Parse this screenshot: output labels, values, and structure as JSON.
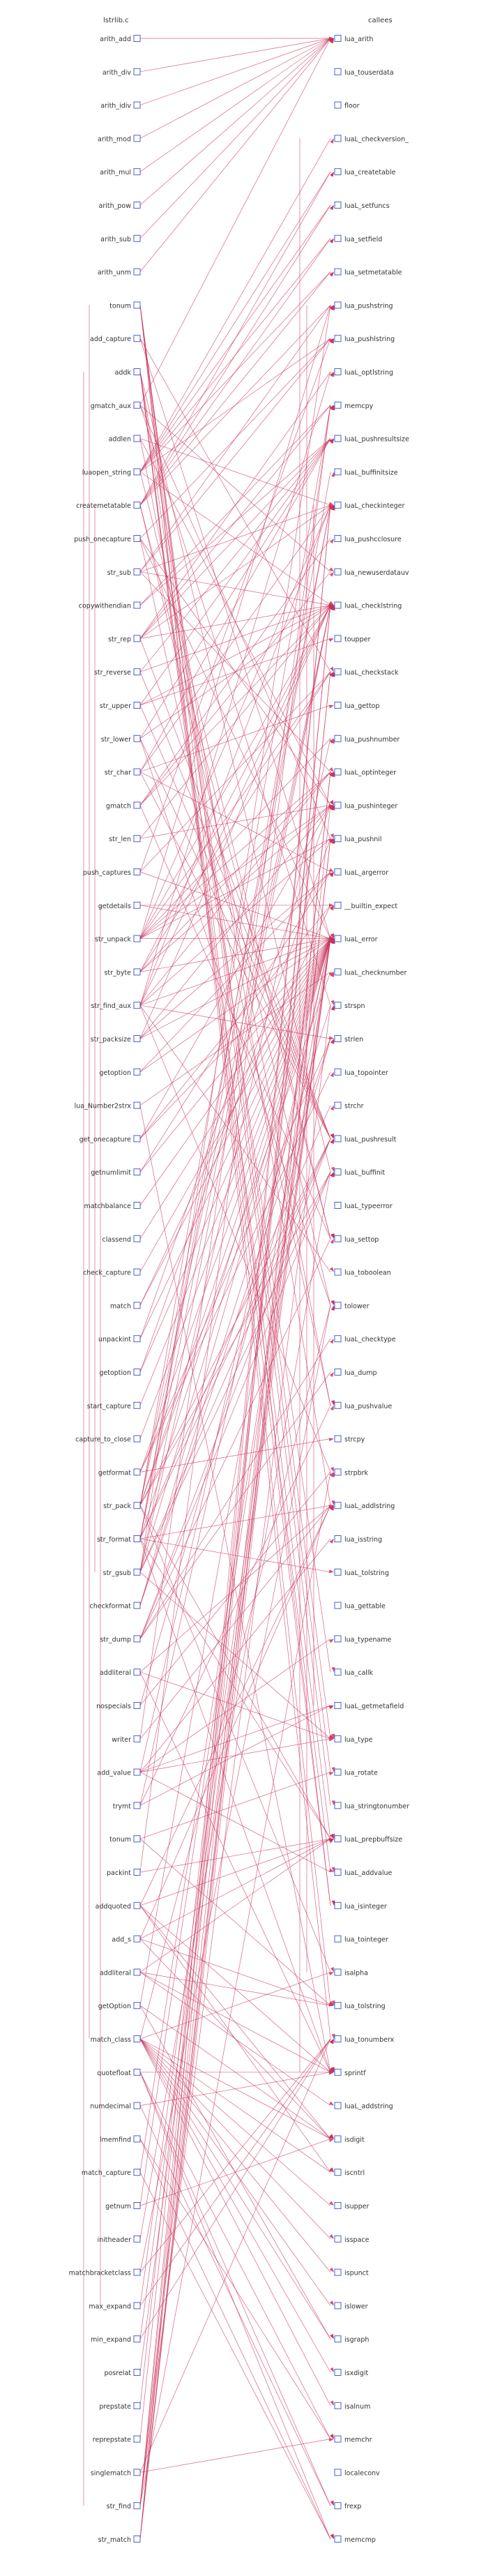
{
  "headers": {
    "left": "lstrlib.c",
    "right": "callees"
  },
  "left_nodes": [
    "arith_add",
    "arith_div",
    "arith_idiv",
    "arith_mod",
    "arith_mul",
    "arith_pow",
    "arith_sub",
    "arith_unm",
    "tonum",
    "add_capture",
    "addk",
    "gmatch_aux",
    "addlen",
    "luaopen_string",
    "createmetatable",
    "push_onecapture",
    "str_sub",
    "copywithendian",
    "str_rep",
    "str_reverse",
    "str_upper",
    "str_lower",
    "str_char",
    "gmatch",
    "str_len",
    "push_captures",
    "getdetails",
    "str_unpack",
    "str_byte",
    "str_find_aux",
    "str_packsize",
    "getoption",
    "lua_Number2strx",
    "get_onecapture",
    "getnumlimit",
    "matchbalance",
    "classend",
    "check_capture",
    "match",
    "unpackint",
    "getoption",
    "start_capture",
    "capture_to_close",
    "getformat",
    "str_pack",
    "str_format",
    "str_gsub",
    "checkformat",
    "str_dump",
    "addliteral",
    "nospecials",
    "writer",
    "add_value",
    "trymt",
    "tonum",
    "packint",
    "addquoted",
    "add_s",
    "addliteral",
    "getOption",
    "match_class",
    "quotefloat",
    "numdecimal",
    "lmemfind",
    "match_capture",
    "getnum",
    "initheader",
    "matchbracketclass",
    "max_expand",
    "min_expand",
    "posrelat",
    "prepstate",
    "reprepstate",
    "singlematch",
    "str_find",
    "str_match"
  ],
  "right_nodes": [
    "lua_arith",
    "lua_touserdata",
    "floor",
    "luaL_checkversion_",
    "lua_createtable",
    "luaL_setfuncs",
    "lua_setfield",
    "lua_setmetatable",
    "lua_pushstring",
    "lua_pushlstring",
    "luaL_optlstring",
    "memcpy",
    "luaL_pushresultsize",
    "luaL_buffinitsize",
    "luaL_checkinteger",
    "lua_pushcclosure",
    "lua_newuserdatauv",
    "luaL_checklstring",
    "toupper",
    "luaL_checkstack",
    "lua_gettop",
    "lua_pushnumber",
    "luaL_optinteger",
    "lua_pushinteger",
    "lua_pushnil",
    "luaL_argerror",
    "__builtin_expect",
    "luaL_error",
    "luaL_checknumber",
    "strspn",
    "strlen",
    "lua_topointer",
    "strchr",
    "luaL_pushresult",
    "luaL_buffinit",
    "luaL_typeerror",
    "lua_settop",
    "lua_toboolean",
    "tolower",
    "luaL_checktype",
    "lua_dump",
    "lua_pushvalue",
    "strcpy",
    "strpbrk",
    "luaL_addlstring",
    "lua_isstring",
    "luaL_tolstring",
    "lua_gettable",
    "lua_typename",
    "lua_callk",
    "luaL_getmetafield",
    "lua_type",
    "lua_rotate",
    "lua_stringtonumber",
    "luaL_prepbuffsize",
    "luaL_addvalue",
    "lua_isinteger",
    "lua_tointeger",
    "isalpha",
    "lua_tolstring",
    "lua_tonumberx",
    "sprintf",
    "luaL_addstring",
    "isdigit",
    "iscntrl",
    "isupper",
    "isspace",
    "ispunct",
    "islower",
    "isgraph",
    "isxdigit",
    "isalnum",
    "memchr",
    "localeconv",
    "frexp",
    "memcmp"
  ],
  "edges": [
    [
      0,
      0
    ],
    [
      1,
      0
    ],
    [
      2,
      0
    ],
    [
      3,
      0
    ],
    [
      4,
      0
    ],
    [
      5,
      0
    ],
    [
      6,
      0
    ],
    [
      7,
      0
    ],
    [
      8,
      59
    ],
    [
      8,
      60
    ],
    [
      8,
      53
    ],
    [
      8,
      51
    ],
    [
      8,
      52
    ],
    [
      8,
      56
    ],
    [
      9,
      27
    ],
    [
      9,
      19
    ],
    [
      10,
      56
    ],
    [
      10,
      55
    ],
    [
      10,
      49
    ],
    [
      10,
      44
    ],
    [
      10,
      54
    ],
    [
      10,
      34
    ],
    [
      11,
      24
    ],
    [
      11,
      29
    ],
    [
      11,
      0
    ],
    [
      11,
      16
    ],
    [
      12,
      14
    ],
    [
      12,
      41
    ],
    [
      12,
      23
    ],
    [
      13,
      3
    ],
    [
      13,
      4
    ],
    [
      13,
      5
    ],
    [
      13,
      6
    ],
    [
      13,
      7
    ],
    [
      13,
      9
    ],
    [
      13,
      36
    ],
    [
      13,
      17
    ],
    [
      14,
      4
    ],
    [
      14,
      8
    ],
    [
      14,
      5
    ],
    [
      14,
      38
    ],
    [
      14,
      6
    ],
    [
      14,
      7
    ],
    [
      14,
      36
    ],
    [
      15,
      23
    ],
    [
      15,
      9
    ],
    [
      15,
      27
    ],
    [
      15,
      41
    ],
    [
      16,
      17
    ],
    [
      16,
      14
    ],
    [
      16,
      22
    ],
    [
      16,
      9
    ],
    [
      16,
      8
    ],
    [
      17,
      11
    ],
    [
      17,
      12
    ],
    [
      18,
      17
    ],
    [
      18,
      14
    ],
    [
      18,
      10
    ],
    [
      18,
      12
    ],
    [
      18,
      11
    ],
    [
      18,
      33
    ],
    [
      19,
      17
    ],
    [
      19,
      12
    ],
    [
      19,
      33
    ],
    [
      20,
      17
    ],
    [
      20,
      12
    ],
    [
      20,
      18
    ],
    [
      20,
      33
    ],
    [
      21,
      17
    ],
    [
      21,
      12
    ],
    [
      21,
      38
    ],
    [
      21,
      33
    ],
    [
      22,
      20
    ],
    [
      22,
      14
    ],
    [
      22,
      12
    ],
    [
      22,
      33
    ],
    [
      22,
      25
    ],
    [
      23,
      17
    ],
    [
      23,
      36
    ],
    [
      23,
      15
    ],
    [
      23,
      16
    ],
    [
      24,
      17
    ],
    [
      24,
      23
    ],
    [
      25,
      9
    ],
    [
      25,
      19
    ],
    [
      25,
      27
    ],
    [
      26,
      27
    ],
    [
      26,
      26
    ],
    [
      27,
      17
    ],
    [
      27,
      14
    ],
    [
      27,
      22
    ],
    [
      27,
      27
    ],
    [
      27,
      19
    ],
    [
      27,
      23
    ],
    [
      27,
      21
    ],
    [
      27,
      8
    ],
    [
      27,
      24
    ],
    [
      28,
      17
    ],
    [
      28,
      22
    ],
    [
      28,
      19
    ],
    [
      28,
      23
    ],
    [
      28,
      27
    ],
    [
      29,
      17
    ],
    [
      29,
      22
    ],
    [
      29,
      14
    ],
    [
      29,
      27
    ],
    [
      29,
      24
    ],
    [
      29,
      10
    ],
    [
      29,
      30
    ],
    [
      29,
      43
    ],
    [
      29,
      37
    ],
    [
      30,
      17
    ],
    [
      30,
      27
    ],
    [
      30,
      23
    ],
    [
      30,
      25
    ],
    [
      31,
      27
    ],
    [
      31,
      25
    ],
    [
      32,
      28
    ],
    [
      32,
      61
    ],
    [
      33,
      27
    ],
    [
      33,
      23
    ],
    [
      33,
      26
    ],
    [
      34,
      27
    ],
    [
      34,
      25
    ],
    [
      35,
      27
    ],
    [
      36,
      27
    ],
    [
      37,
      27
    ],
    [
      38,
      26
    ],
    [
      38,
      27
    ],
    [
      39,
      23
    ],
    [
      39,
      27
    ],
    [
      40,
      27
    ],
    [
      40,
      24
    ],
    [
      41,
      27
    ],
    [
      42,
      27
    ],
    [
      43,
      30
    ],
    [
      43,
      27
    ],
    [
      43,
      42
    ],
    [
      43,
      31
    ],
    [
      44,
      17
    ],
    [
      44,
      54
    ],
    [
      44,
      34
    ],
    [
      44,
      58
    ],
    [
      44,
      28
    ],
    [
      44,
      14
    ],
    [
      44,
      33
    ],
    [
      44,
      27
    ],
    [
      44,
      11
    ],
    [
      45,
      17
    ],
    [
      45,
      54
    ],
    [
      45,
      33
    ],
    [
      45,
      61
    ],
    [
      45,
      46
    ],
    [
      45,
      32
    ],
    [
      45,
      44
    ],
    [
      45,
      13
    ],
    [
      45,
      27
    ],
    [
      45,
      14
    ],
    [
      46,
      17
    ],
    [
      46,
      34
    ],
    [
      46,
      33
    ],
    [
      46,
      51
    ],
    [
      46,
      27
    ],
    [
      46,
      21
    ],
    [
      46,
      8
    ],
    [
      47,
      29
    ],
    [
      47,
      27
    ],
    [
      47,
      30
    ],
    [
      48,
      39
    ],
    [
      48,
      40
    ],
    [
      48,
      34
    ],
    [
      48,
      33
    ],
    [
      48,
      36
    ],
    [
      49,
      44
    ],
    [
      49,
      51
    ],
    [
      49,
      61
    ],
    [
      50,
      43
    ],
    [
      50,
      30
    ],
    [
      51,
      44
    ],
    [
      51,
      11
    ],
    [
      52,
      51
    ],
    [
      52,
      50
    ],
    [
      52,
      48
    ],
    [
      52,
      27
    ],
    [
      52,
      55
    ],
    [
      52,
      45
    ],
    [
      53,
      50
    ],
    [
      53,
      27
    ],
    [
      53,
      41
    ],
    [
      54,
      52
    ],
    [
      54,
      59
    ],
    [
      55,
      54
    ],
    [
      55,
      11
    ],
    [
      56,
      54
    ],
    [
      56,
      63
    ],
    [
      56,
      64
    ],
    [
      56,
      61
    ],
    [
      56,
      44
    ],
    [
      57,
      54
    ],
    [
      57,
      44
    ],
    [
      57,
      59
    ],
    [
      57,
      63
    ],
    [
      58,
      59
    ],
    [
      58,
      61
    ],
    [
      58,
      54
    ],
    [
      58,
      62
    ],
    [
      59,
      27
    ],
    [
      59,
      69
    ],
    [
      59,
      63
    ],
    [
      60,
      58
    ],
    [
      60,
      63
    ],
    [
      60,
      64
    ],
    [
      60,
      65
    ],
    [
      60,
      66
    ],
    [
      60,
      67
    ],
    [
      60,
      68
    ],
    [
      60,
      69
    ],
    [
      60,
      70
    ],
    [
      60,
      71
    ],
    [
      60,
      38
    ],
    [
      61,
      61
    ],
    [
      61,
      74
    ],
    [
      61,
      75
    ],
    [
      61,
      72
    ],
    [
      62,
      74
    ],
    [
      62,
      61
    ],
    [
      63,
      75
    ],
    [
      63,
      72
    ],
    [
      64,
      75
    ],
    [
      64,
      27
    ],
    [
      65,
      63
    ],
    [
      65,
      27
    ],
    [
      66,
      34
    ],
    [
      67,
      60
    ],
    [
      67,
      38
    ],
    [
      68,
      60
    ],
    [
      68,
      27
    ],
    [
      69,
      60
    ],
    [
      69,
      27
    ],
    [
      70,
      27
    ],
    [
      71,
      19
    ],
    [
      72,
      19
    ],
    [
      73,
      60
    ],
    [
      73,
      72
    ],
    [
      74,
      17
    ],
    [
      74,
      14
    ],
    [
      74,
      22
    ],
    [
      74,
      29
    ],
    [
      74,
      43
    ],
    [
      74,
      24
    ],
    [
      75,
      17
    ],
    [
      75,
      14
    ],
    [
      75,
      22
    ],
    [
      75,
      24
    ],
    [
      75,
      23
    ]
  ]
}
